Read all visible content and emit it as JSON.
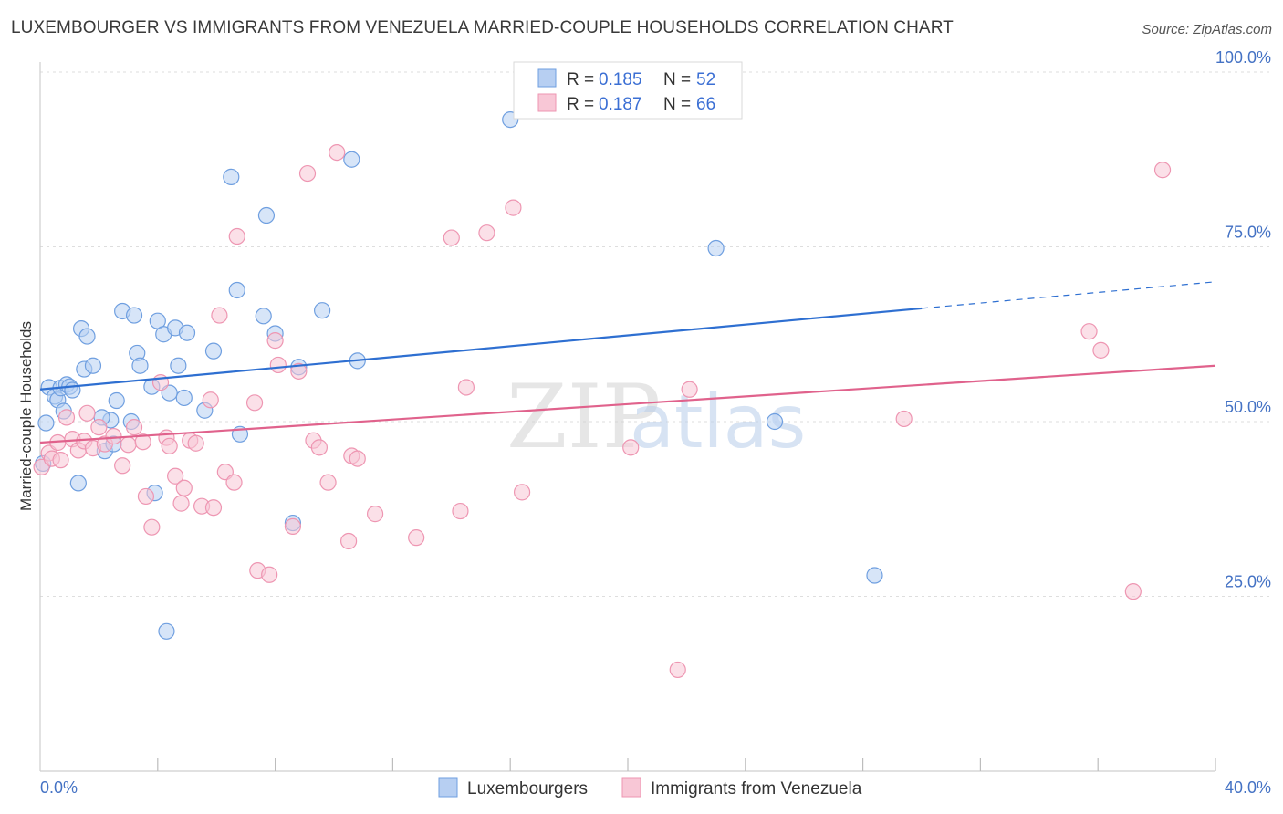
{
  "header": {
    "title": "LUXEMBOURGER VS IMMIGRANTS FROM VENEZUELA MARRIED-COUPLE HOUSEHOLDS CORRELATION CHART",
    "source": "Source: ZipAtlas.com"
  },
  "watermark": {
    "zip": "ZIP",
    "atlas": "atlas"
  },
  "chart_data": {
    "type": "scatter",
    "title": "LUXEMBOURGER VS IMMIGRANTS FROM VENEZUELA MARRIED-COUPLE HOUSEHOLDS CORRELATION CHART",
    "xlabel": "",
    "ylabel": "Married-couple Households",
    "xlim": [
      0,
      40
    ],
    "ylim": [
      0,
      100
    ],
    "x_tick_labels": [
      "0.0%",
      "40.0%"
    ],
    "y_ticks": [
      25,
      50,
      75,
      100
    ],
    "y_tick_labels": [
      "25.0%",
      "50.0%",
      "75.0%",
      "100.0%"
    ],
    "grid": true,
    "legend_placement": "top-center",
    "series": [
      {
        "name": "Luxembourgers",
        "color": "#6f9fe0",
        "fill": "#b7cff2",
        "line_color": "#2e6fd1",
        "R": "0.185",
        "N": "52",
        "trend": {
          "x0": 0,
          "y0": 54.6,
          "x1": 30,
          "y1": 66.2,
          "dashed_to_x": 40,
          "dashed_to_y": 70.0
        },
        "points": [
          [
            0.2,
            49.8
          ],
          [
            0.3,
            54.9
          ],
          [
            0.5,
            53.6
          ],
          [
            0.6,
            53.1
          ],
          [
            0.7,
            54.8
          ],
          [
            0.8,
            51.5
          ],
          [
            0.9,
            55.3
          ],
          [
            1.0,
            55.0
          ],
          [
            1.1,
            54.5
          ],
          [
            1.4,
            63.3
          ],
          [
            1.5,
            57.5
          ],
          [
            1.6,
            62.2
          ],
          [
            1.8,
            58.0
          ],
          [
            2.2,
            45.8
          ],
          [
            2.4,
            50.2
          ],
          [
            2.6,
            53.0
          ],
          [
            2.8,
            65.8
          ],
          [
            3.2,
            65.2
          ],
          [
            3.3,
            59.8
          ],
          [
            3.4,
            58.0
          ],
          [
            3.8,
            55.0
          ],
          [
            3.9,
            39.8
          ],
          [
            4.0,
            64.4
          ],
          [
            4.2,
            62.5
          ],
          [
            4.3,
            20.0
          ],
          [
            4.4,
            54.1
          ],
          [
            4.6,
            63.4
          ],
          [
            4.7,
            58.0
          ],
          [
            4.9,
            53.4
          ],
          [
            5.0,
            62.7
          ],
          [
            5.6,
            51.6
          ],
          [
            5.9,
            60.1
          ],
          [
            6.5,
            85.0
          ],
          [
            6.7,
            68.8
          ],
          [
            6.8,
            48.2
          ],
          [
            7.7,
            79.5
          ],
          [
            7.6,
            65.1
          ],
          [
            8.0,
            62.6
          ],
          [
            8.6,
            35.5
          ],
          [
            8.8,
            57.8
          ],
          [
            9.6,
            65.9
          ],
          [
            10.6,
            87.5
          ],
          [
            10.8,
            58.7
          ],
          [
            16.0,
            93.2
          ],
          [
            23.0,
            74.8
          ],
          [
            25.0,
            50.0
          ],
          [
            28.4,
            28.0
          ],
          [
            1.3,
            41.2
          ],
          [
            2.5,
            46.8
          ],
          [
            0.1,
            44.0
          ],
          [
            2.1,
            50.6
          ],
          [
            3.1,
            50.0
          ]
        ]
      },
      {
        "name": "Immigrants from Venezuela",
        "color": "#ee96b2",
        "fill": "#f8c7d6",
        "line_color": "#e0628c",
        "R": "0.187",
        "N": "66",
        "trend": {
          "x0": 0,
          "y0": 47.0,
          "x1": 40,
          "y1": 58.0
        },
        "points": [
          [
            0.05,
            43.5
          ],
          [
            0.3,
            45.5
          ],
          [
            0.4,
            44.7
          ],
          [
            0.6,
            47.0
          ],
          [
            0.7,
            44.5
          ],
          [
            0.9,
            50.6
          ],
          [
            1.1,
            47.5
          ],
          [
            1.3,
            45.9
          ],
          [
            1.5,
            47.2
          ],
          [
            1.6,
            51.2
          ],
          [
            1.8,
            46.2
          ],
          [
            2.0,
            49.2
          ],
          [
            2.2,
            46.8
          ],
          [
            2.5,
            47.9
          ],
          [
            2.8,
            43.7
          ],
          [
            3.0,
            46.7
          ],
          [
            3.2,
            49.2
          ],
          [
            3.5,
            47.1
          ],
          [
            3.6,
            39.3
          ],
          [
            3.8,
            34.9
          ],
          [
            4.1,
            55.6
          ],
          [
            4.3,
            47.7
          ],
          [
            4.4,
            46.5
          ],
          [
            4.6,
            42.2
          ],
          [
            4.8,
            38.3
          ],
          [
            4.9,
            40.5
          ],
          [
            5.1,
            47.3
          ],
          [
            5.3,
            46.9
          ],
          [
            5.5,
            37.9
          ],
          [
            5.8,
            53.1
          ],
          [
            5.9,
            37.7
          ],
          [
            6.1,
            65.2
          ],
          [
            6.3,
            42.8
          ],
          [
            6.6,
            41.3
          ],
          [
            6.7,
            76.5
          ],
          [
            7.3,
            52.7
          ],
          [
            7.4,
            28.7
          ],
          [
            7.8,
            28.1
          ],
          [
            8.0,
            61.6
          ],
          [
            8.1,
            58.1
          ],
          [
            8.6,
            35.0
          ],
          [
            8.8,
            57.2
          ],
          [
            9.1,
            85.5
          ],
          [
            9.3,
            47.3
          ],
          [
            9.5,
            46.3
          ],
          [
            9.8,
            41.3
          ],
          [
            10.1,
            88.5
          ],
          [
            10.5,
            32.9
          ],
          [
            10.6,
            45.1
          ],
          [
            10.8,
            44.7
          ],
          [
            11.4,
            36.8
          ],
          [
            12.8,
            33.4
          ],
          [
            14.0,
            76.3
          ],
          [
            14.3,
            37.2
          ],
          [
            14.5,
            54.9
          ],
          [
            15.2,
            77.0
          ],
          [
            16.1,
            80.6
          ],
          [
            16.4,
            39.9
          ],
          [
            20.1,
            46.3
          ],
          [
            21.7,
            14.5
          ],
          [
            22.1,
            54.6
          ],
          [
            29.4,
            50.4
          ],
          [
            35.7,
            62.9
          ],
          [
            36.1,
            60.2
          ],
          [
            37.2,
            25.7
          ],
          [
            38.2,
            86.0
          ]
        ]
      }
    ]
  },
  "legend": {
    "r_label": "R =",
    "n_label": "N =",
    "items": [
      {
        "r": "0.185",
        "n": "52"
      },
      {
        "r": "0.187",
        "n": "66"
      }
    ]
  },
  "bottom_legend": {
    "items": [
      {
        "label": "Luxembourgers",
        "color": "#b7cff2",
        "stroke": "#6f9fe0"
      },
      {
        "label": "Immigrants from Venezuela",
        "color": "#f8c7d6",
        "stroke": "#ee96b2"
      }
    ]
  }
}
